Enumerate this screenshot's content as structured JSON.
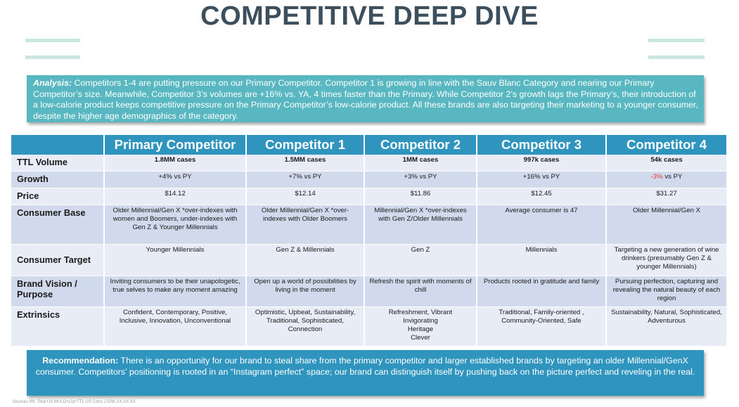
{
  "title": "COMPETITIVE DEEP DIVE",
  "analysis": {
    "label": "Analysis:",
    "text": " Competitors 1-4 are putting pressure on our Primary Competitor. Competitor 1 is growing in line with the Sauv Blanc Category and nearing our Primary Competitor’s size. Meanwhile, Competitor 3’s volumes are +16% vs. YA, 4 times faster than the Primary. While Competitor 2’s growth lags the Primary’s, their introduction of a low-calorie product keeps competitive pressure on the Primary Competitor’s low-calorie product.  All these brands are also targeting their marketing to a younger consumer, despite the higher age demographics of the category."
  },
  "table": {
    "headers": [
      "",
      "Primary Competitor",
      "Competitor 1",
      "Competitor 2",
      "Competitor 3",
      "Competitor 4"
    ],
    "rows": [
      {
        "label": "TTL Volume",
        "cells": [
          "1.8MM cases",
          "1.5MM cases",
          "1MM cases",
          "997k cases",
          "54k cases"
        ]
      },
      {
        "label": "Growth",
        "cells": [
          "+4% vs PY",
          "+7% vs PY",
          "+3% vs PY",
          "+16% vs PY",
          "-3%"
        ],
        "suffix": " vs PY"
      },
      {
        "label": "Price",
        "cells": [
          "$14.12",
          "$12.14",
          "$11.86",
          "$12.45",
          "$31.27"
        ]
      },
      {
        "label": "Consumer Base",
        "cells": [
          "Older Millennial/Gen X *over-indexes with women and Boomers, under-indexes with Gen Z & Younger Millennials",
          "Older Millennial/Gen X *over-indexes with Older Boomers",
          "Millennial/Gen X *over-indexes with Gen Z/Older Millennials",
          "Average consumer is 47",
          "Older Millennial/Gen X"
        ]
      },
      {
        "label": "Consumer Target",
        "cells": [
          "Younger Millennials",
          "Gen Z & Millennials",
          "Gen Z",
          "Millennials",
          "Targeting a new generation of wine drinkers (presumably Gen Z & younger Millennials)"
        ]
      },
      {
        "label": "Brand Vision / Purpose",
        "cells": [
          "Inviting consumers to be their unapologetic, true selves to make any moment amazing",
          "Open up a world of possibilities by living in the moment",
          "Refresh the spirit with moments of chill",
          "Products rooted in gratitude and family",
          "Pursuing perfection, capturing and revealing the natural beauty of each region"
        ]
      },
      {
        "label": "Extrinsics",
        "cells": [
          "Confident, Contemporary, Positive, Inclusive, Innovation, Unconventional",
          "Optimistic, Upbeat, Sustainability, Traditional, Sophisticated, Connection",
          "Refreshment, Vibrant\nInvigorating\nHeritage\nClever",
          "Traditional, Family-oriented , Community-Oriented, Safe",
          "Sustainability, Natural, Sophisticated, Adventurous"
        ]
      }
    ]
  },
  "recommendation": {
    "label": "Recommendation:",
    "text": " There is an opportunity for our brand to steal share from the primary competitor and larger established brands by targeting an older Millennial/GenX consumer. Competitors’ positioning is rooted in an “Instagram perfect” space; our brand can distinguish itself by pushing back on the picture perfect and reveling in the real."
  },
  "source": "Sources IRI, Total US MULO+Liq+TTL US Conv, L52W XX.XX.XX",
  "colors": {
    "title": "#3d4f5c",
    "analysis_bg": "#58b7c0",
    "header_bg": "#2f95be",
    "row_light": "#e7ecf6",
    "row_dark": "#d1daed",
    "negative": "#e53935",
    "deco": "#c9e7e1"
  }
}
